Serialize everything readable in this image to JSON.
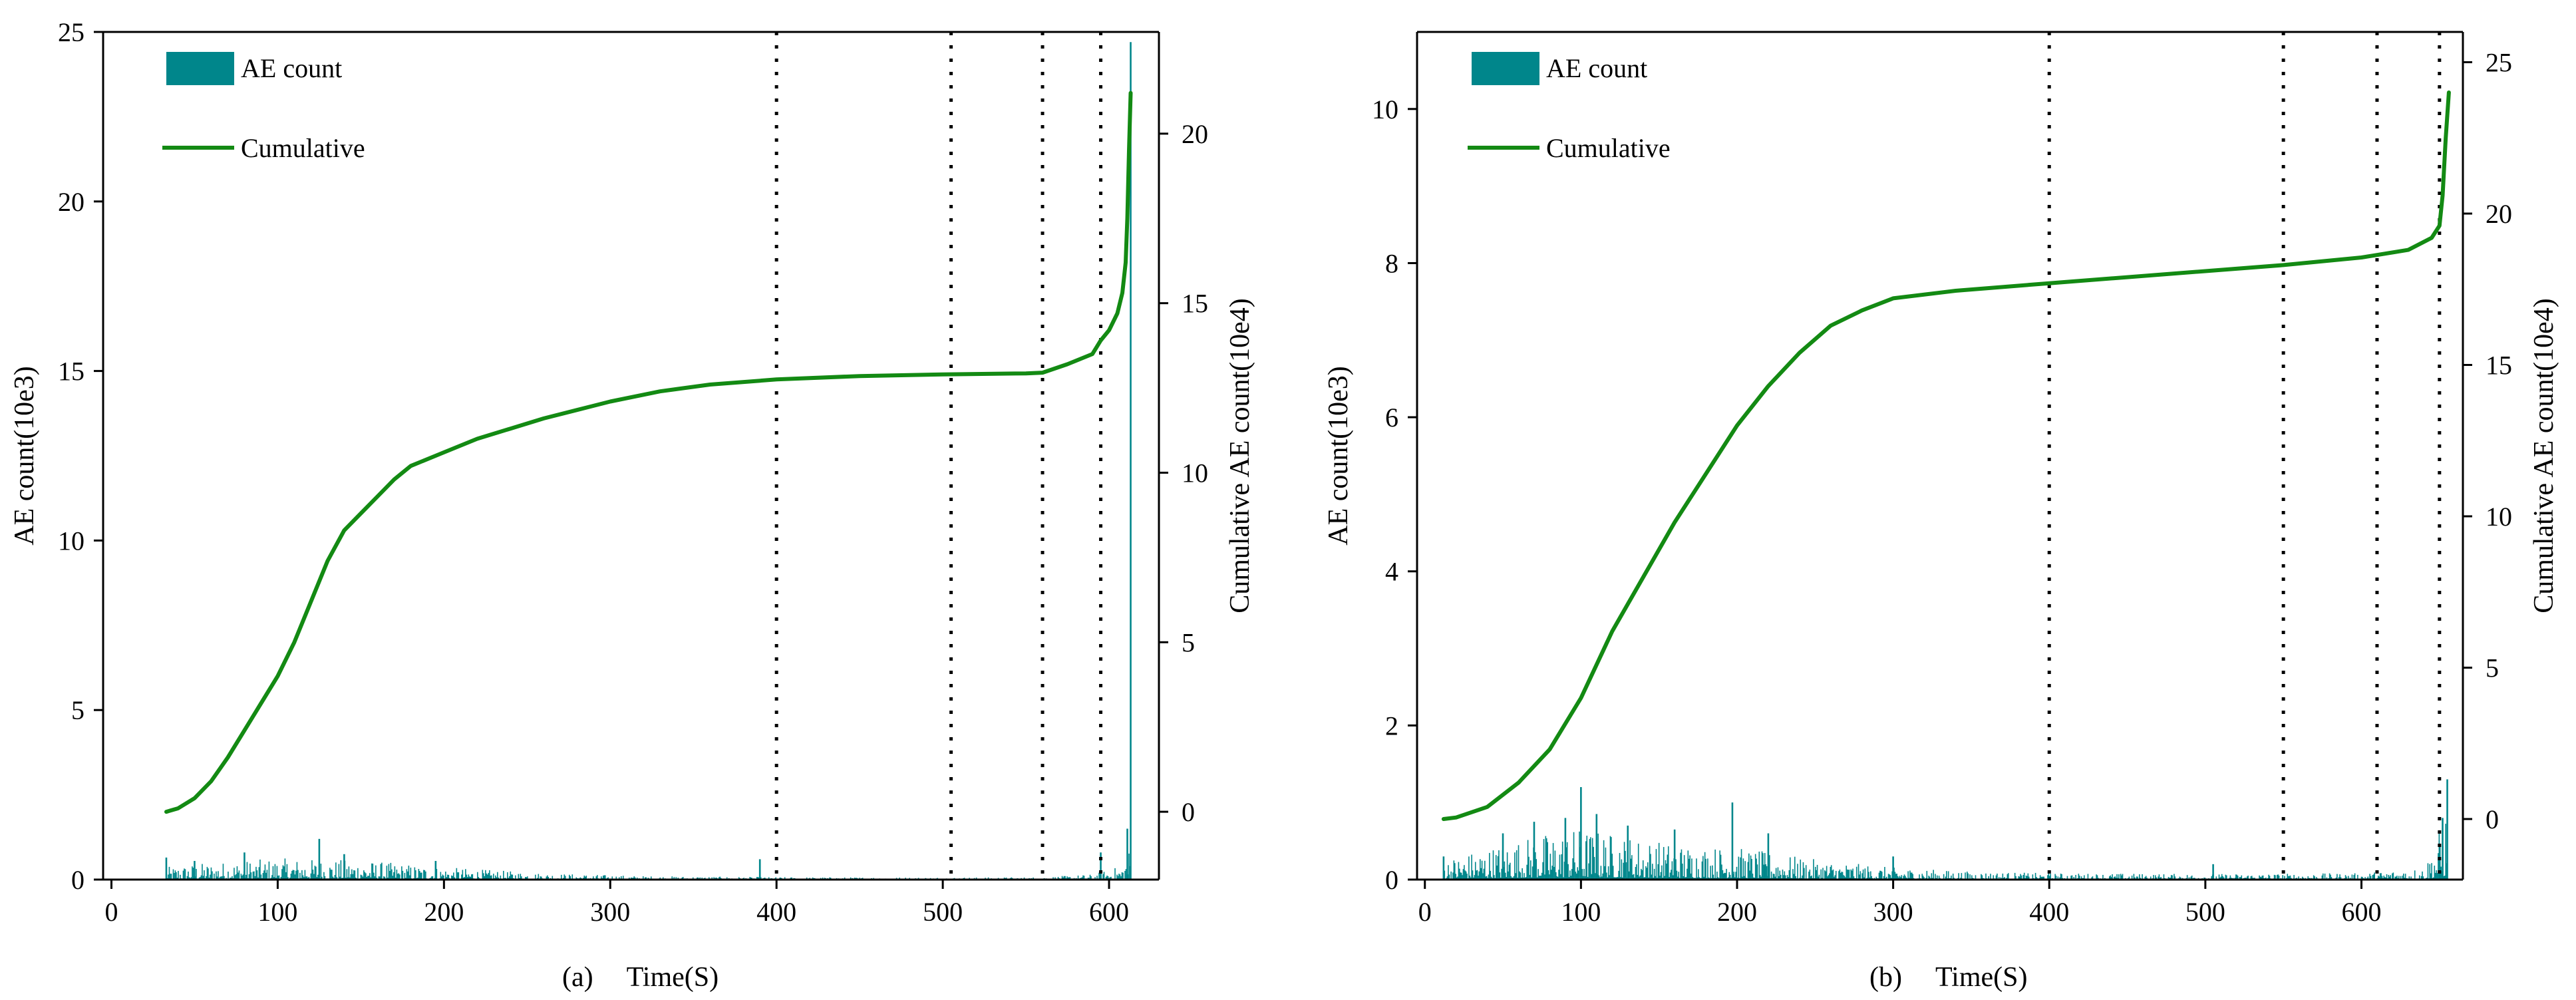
{
  "colors": {
    "bar": "#00868b",
    "line": "#138a13",
    "axis": "#000000",
    "marker_line": "#000000"
  },
  "chart_data": [
    {
      "type": "bar",
      "panel_label": "(a)",
      "xlabel": "Time(S)",
      "ylabel": "AE count(10e3)",
      "y2label": "Cumulative AE count(10e4)",
      "xlim": [
        -5,
        630
      ],
      "ylim": [
        0,
        25
      ],
      "y2lim": [
        -2,
        23
      ],
      "xticks": [
        0,
        100,
        200,
        300,
        400,
        500,
        600
      ],
      "yticks": [
        0,
        5,
        10,
        15,
        20,
        25
      ],
      "y2ticks": [
        0,
        5,
        10,
        15,
        20
      ],
      "legend": {
        "position": "top-left",
        "entries": [
          "AE count",
          "Cumulative"
        ]
      },
      "vlines": [
        400,
        505,
        560,
        595
      ],
      "bar_series": {
        "name": "AE count",
        "time_range": [
          33,
          613
        ],
        "envelope_x": [
          33,
          50,
          100,
          150,
          200,
          260,
          320,
          400,
          500,
          560,
          590,
          608,
          613
        ],
        "envelope_y": [
          0.35,
          0.45,
          0.6,
          0.55,
          0.35,
          0.18,
          0.1,
          0.07,
          0.06,
          0.07,
          0.15,
          0.4,
          1.0
        ],
        "spikes": [
          [
            33,
            0.65
          ],
          [
            50,
            0.55
          ],
          [
            80,
            0.8
          ],
          [
            125,
            1.2
          ],
          [
            140,
            0.75
          ],
          [
            195,
            0.55
          ],
          [
            390,
            0.6
          ],
          [
            595,
            0.8
          ],
          [
            611,
            1.5
          ],
          [
            613,
            24.7
          ]
        ]
      },
      "line_series": {
        "name": "Cumulative",
        "x": [
          33,
          40,
          50,
          60,
          70,
          80,
          90,
          100,
          110,
          120,
          130,
          140,
          150,
          160,
          170,
          180,
          200,
          220,
          240,
          260,
          280,
          300,
          330,
          360,
          400,
          450,
          500,
          550,
          560,
          575,
          590,
          595,
          600,
          605,
          608,
          610,
          611,
          612,
          613
        ],
        "y": [
          0.0,
          0.1,
          0.4,
          0.9,
          1.6,
          2.4,
          3.2,
          4.0,
          5.0,
          6.2,
          7.4,
          8.3,
          8.8,
          9.3,
          9.8,
          10.2,
          10.6,
          11.0,
          11.3,
          11.6,
          11.85,
          12.1,
          12.4,
          12.6,
          12.75,
          12.85,
          12.9,
          12.93,
          12.95,
          13.2,
          13.5,
          13.9,
          14.2,
          14.7,
          15.3,
          16.2,
          17.5,
          19.5,
          21.2
        ]
      }
    },
    {
      "type": "bar",
      "panel_label": "(b)",
      "xlabel": "Time(S)",
      "ylabel": "AE count(10e3)",
      "y2label": "Cumulative AE count(10e4)",
      "xlim": [
        -5,
        665
      ],
      "ylim": [
        0,
        11
      ],
      "y2lim": [
        -2,
        26
      ],
      "xticks": [
        0,
        100,
        200,
        300,
        400,
        500,
        600
      ],
      "yticks": [
        0,
        2,
        4,
        6,
        8,
        10
      ],
      "y2ticks": [
        0,
        5,
        10,
        15,
        20,
        25
      ],
      "legend": {
        "position": "top-left",
        "entries": [
          "AE count",
          "Cumulative"
        ]
      },
      "vlines": [
        400,
        550,
        610,
        650
      ],
      "bar_series": {
        "name": "AE count",
        "time_range": [
          12,
          655
        ],
        "envelope_x": [
          12,
          40,
          70,
          100,
          130,
          160,
          200,
          250,
          300,
          350,
          400,
          500,
          600,
          640,
          650,
          655
        ],
        "envelope_y": [
          0.25,
          0.4,
          0.55,
          0.65,
          0.55,
          0.45,
          0.4,
          0.25,
          0.15,
          0.1,
          0.08,
          0.07,
          0.08,
          0.15,
          0.6,
          1.0
        ],
        "spikes": [
          [
            12,
            0.3
          ],
          [
            50,
            0.6
          ],
          [
            70,
            0.75
          ],
          [
            90,
            0.8
          ],
          [
            100,
            1.2
          ],
          [
            110,
            0.85
          ],
          [
            130,
            0.7
          ],
          [
            160,
            0.65
          ],
          [
            197,
            1.0
          ],
          [
            220,
            0.6
          ],
          [
            300,
            0.3
          ],
          [
            505,
            0.2
          ],
          [
            652,
            0.8
          ],
          [
            655,
            1.3
          ]
        ]
      },
      "line_series": {
        "name": "Cumulative",
        "x": [
          12,
          20,
          40,
          60,
          80,
          100,
          120,
          140,
          160,
          180,
          200,
          220,
          240,
          260,
          280,
          300,
          340,
          400,
          450,
          500,
          550,
          600,
          630,
          645,
          650,
          652,
          654,
          656
        ],
        "y": [
          0.0,
          0.05,
          0.4,
          1.2,
          2.3,
          4.0,
          6.2,
          8.0,
          9.8,
          11.4,
          13.0,
          14.3,
          15.4,
          16.3,
          16.8,
          17.2,
          17.45,
          17.7,
          17.9,
          18.1,
          18.3,
          18.55,
          18.8,
          19.2,
          19.6,
          20.6,
          22.5,
          24.0
        ]
      }
    }
  ]
}
